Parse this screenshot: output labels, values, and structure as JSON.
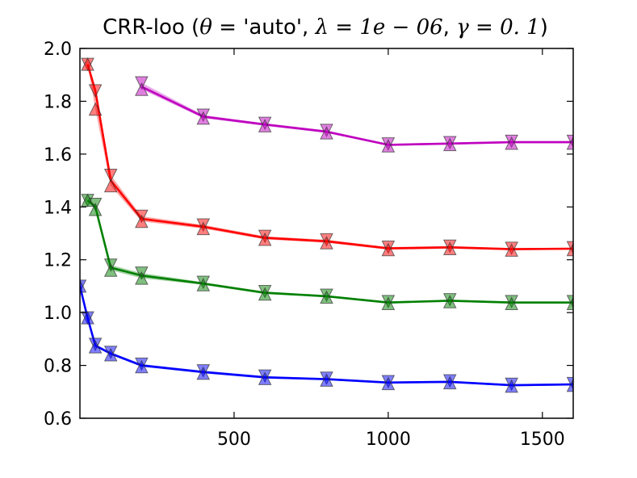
{
  "chart_data": {
    "type": "line",
    "title": {
      "prefix": "CRR-loo (",
      "theta_sym": "θ",
      "eq": " = ",
      "theta_val": "'auto'",
      "sep": ", ",
      "lambda_sym": "λ",
      "lambda_val": "1e − 06",
      "gamma_sym": "γ",
      "gamma_val": "0. 1",
      "suffix": ")"
    },
    "xlabel": "",
    "ylabel": "",
    "xlim": [
      0,
      1600
    ],
    "ylim": [
      0.6,
      2.0
    ],
    "xticks": [
      500,
      1000,
      1500
    ],
    "xtick_labels": [
      "500",
      "1000",
      "1500"
    ],
    "yticks": [
      0.6,
      0.8,
      1.0,
      1.2,
      1.4,
      1.6,
      1.8,
      2.0
    ],
    "ytick_labels": [
      "0.6",
      "0.8",
      "1.0",
      "1.2",
      "1.4",
      "1.6",
      "1.8",
      "2.0"
    ],
    "grid": false,
    "series": [
      {
        "color": "#0000ff",
        "x": [
          0,
          25,
          50,
          100,
          200,
          400,
          600,
          800,
          1000,
          1200,
          1400,
          1600
        ],
        "y": [
          1.1,
          0.98,
          0.875,
          0.845,
          0.8,
          0.775,
          0.755,
          0.748,
          0.735,
          0.738,
          0.725,
          0.728
        ],
        "y_low": [
          1.1,
          0.98,
          0.87,
          0.84,
          0.795,
          0.77,
          0.75,
          0.744,
          0.731,
          0.734,
          0.721,
          0.724
        ],
        "y_up": [
          1.1,
          0.98,
          0.88,
          0.85,
          0.805,
          0.78,
          0.76,
          0.752,
          0.739,
          0.742,
          0.729,
          0.732
        ]
      },
      {
        "color": "#008000",
        "x": [
          25,
          50,
          100,
          200,
          400,
          600,
          800,
          1000,
          1200,
          1400,
          1600
        ],
        "y": [
          1.425,
          1.4,
          1.17,
          1.14,
          1.11,
          1.075,
          1.062,
          1.038,
          1.045,
          1.038,
          1.038
        ],
        "y_low": [
          1.425,
          1.39,
          1.16,
          1.13,
          1.105,
          1.07,
          1.058,
          1.034,
          1.041,
          1.034,
          1.034
        ],
        "y_up": [
          1.425,
          1.41,
          1.18,
          1.15,
          1.115,
          1.08,
          1.066,
          1.042,
          1.049,
          1.042,
          1.042
        ]
      },
      {
        "color": "#ff0000",
        "x": [
          25,
          50,
          100,
          200,
          400,
          600,
          800,
          1000,
          1200,
          1400,
          1600
        ],
        "y": [
          1.94,
          1.84,
          1.5,
          1.355,
          1.325,
          1.283,
          1.27,
          1.243,
          1.247,
          1.24,
          1.242
        ],
        "y_low": [
          1.94,
          1.77,
          1.48,
          1.345,
          1.318,
          1.277,
          1.264,
          1.238,
          1.242,
          1.236,
          1.238
        ],
        "y_up": [
          1.94,
          1.84,
          1.52,
          1.365,
          1.332,
          1.289,
          1.276,
          1.248,
          1.252,
          1.244,
          1.246
        ]
      },
      {
        "color": "#bf00bf",
        "x": [
          200,
          400,
          600,
          800,
          1000,
          1200,
          1400,
          1600
        ],
        "y": [
          1.855,
          1.742,
          1.712,
          1.685,
          1.635,
          1.64,
          1.645,
          1.645
        ],
        "y_low": [
          1.845,
          1.736,
          1.707,
          1.68,
          1.631,
          1.636,
          1.641,
          1.641
        ],
        "y_up": [
          1.87,
          1.748,
          1.717,
          1.69,
          1.639,
          1.644,
          1.649,
          1.649
        ]
      }
    ]
  }
}
